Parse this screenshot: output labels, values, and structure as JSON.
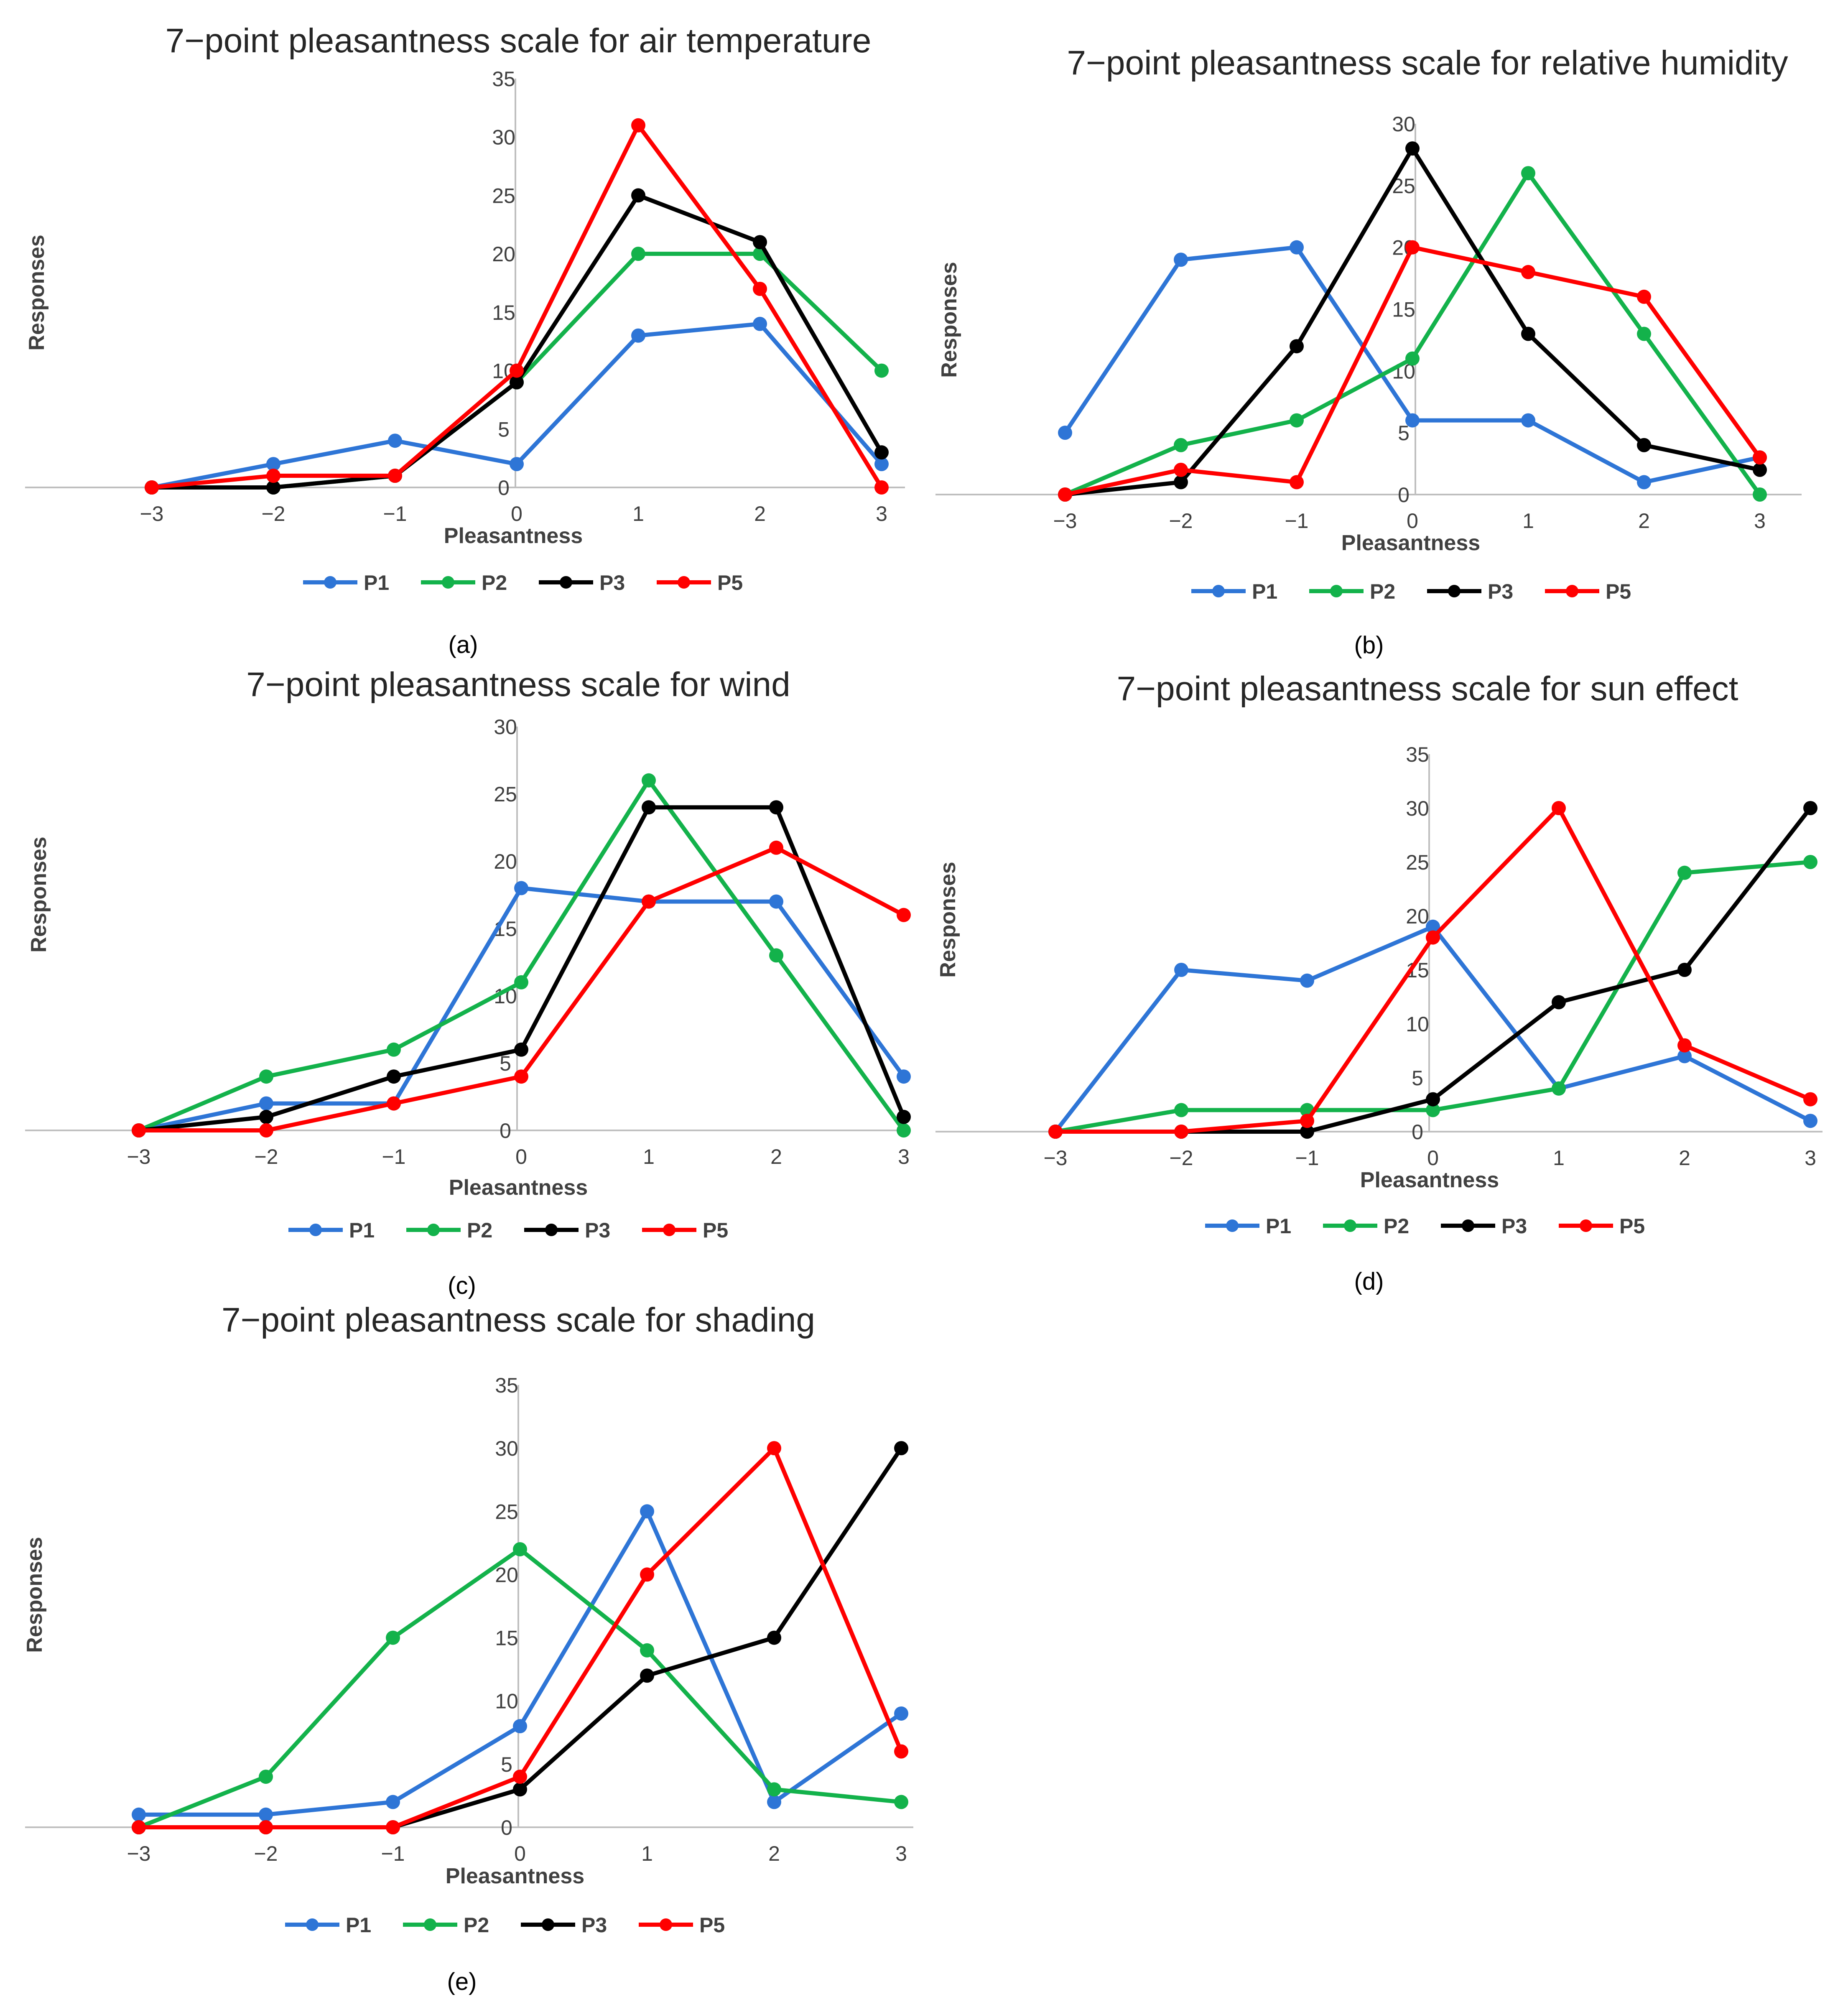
{
  "chart_data": [
    {
      "type": "line",
      "panel_label": "a",
      "title": "7−point pleasantness scale for air temperature",
      "xlabel": "Pleasantness",
      "ylabel": "Responses",
      "categories": [
        "−3",
        "−2",
        "−1",
        "0",
        "1",
        "2",
        "3"
      ],
      "x": [
        -3,
        -2,
        -1,
        0,
        1,
        2,
        3
      ],
      "ylim": [
        0,
        35
      ],
      "yticks": [
        0,
        5,
        10,
        15,
        20,
        25,
        30,
        35
      ],
      "ytick_labels": [
        "0",
        "5",
        "10",
        "15",
        "20",
        "25",
        "30",
        "35"
      ],
      "grid": false,
      "legend": "bottom",
      "series": [
        {
          "name": "P1",
          "color": "#2E75D6",
          "values": [
            0,
            2,
            4,
            2,
            13,
            14,
            2
          ]
        },
        {
          "name": "P2",
          "color": "#13B24B",
          "values": [
            0,
            0,
            1,
            9,
            20,
            20,
            10
          ]
        },
        {
          "name": "P3",
          "color": "#000000",
          "values": [
            0,
            0,
            1,
            9,
            25,
            21,
            3
          ]
        },
        {
          "name": "P5",
          "color": "#FF0000",
          "values": [
            0,
            1,
            1,
            10,
            31,
            17,
            0
          ]
        }
      ]
    },
    {
      "type": "line",
      "panel_label": "b",
      "title": "7−point pleasantness scale for relative humidity",
      "xlabel": "Pleasantness",
      "ylabel": "Responses",
      "categories": [
        "−3",
        "−2",
        "−1",
        "0",
        "1",
        "2",
        "3"
      ],
      "x": [
        -3,
        -2,
        -1,
        0,
        1,
        2,
        3
      ],
      "ylim": [
        0,
        30
      ],
      "yticks": [
        0,
        5,
        10,
        15,
        20,
        25,
        30
      ],
      "ytick_labels": [
        "0",
        "5",
        "10",
        "15",
        "20",
        "25",
        "30"
      ],
      "grid": false,
      "legend": "bottom",
      "series": [
        {
          "name": "P1",
          "color": "#2E75D6",
          "values": [
            5,
            19,
            20,
            6,
            6,
            1,
            3
          ]
        },
        {
          "name": "P2",
          "color": "#13B24B",
          "values": [
            0,
            4,
            6,
            11,
            26,
            13,
            0
          ]
        },
        {
          "name": "P3",
          "color": "#000000",
          "values": [
            0,
            1,
            12,
            28,
            13,
            4,
            2
          ]
        },
        {
          "name": "P5",
          "color": "#FF0000",
          "values": [
            0,
            2,
            1,
            20,
            18,
            16,
            3
          ]
        }
      ]
    },
    {
      "type": "line",
      "panel_label": "c",
      "title": "7−point pleasantness scale for wind",
      "xlabel": "Pleasantness",
      "ylabel": "Responses",
      "categories": [
        "−3",
        "−2",
        "−1",
        "0",
        "1",
        "2",
        "3"
      ],
      "x": [
        -3,
        -2,
        -1,
        0,
        1,
        2,
        3
      ],
      "ylim": [
        0,
        30
      ],
      "yticks": [
        0,
        5,
        10,
        15,
        20,
        25,
        30
      ],
      "ytick_labels": [
        "0",
        "5",
        "10",
        "15",
        "20",
        "25",
        "30"
      ],
      "grid": false,
      "legend": "bottom",
      "series": [
        {
          "name": "P1",
          "color": "#2E75D6",
          "values": [
            0,
            2,
            2,
            18,
            17,
            17,
            4
          ]
        },
        {
          "name": "P2",
          "color": "#13B24B",
          "values": [
            0,
            4,
            6,
            11,
            26,
            13,
            0
          ]
        },
        {
          "name": "P3",
          "color": "#000000",
          "values": [
            0,
            1,
            4,
            6,
            24,
            24,
            1
          ]
        },
        {
          "name": "P5",
          "color": "#FF0000",
          "values": [
            0,
            0,
            2,
            4,
            17,
            21,
            16
          ]
        }
      ]
    },
    {
      "type": "line",
      "panel_label": "d",
      "title": "7−point pleasantness scale for sun effect",
      "xlabel": "Pleasantness",
      "ylabel": "Responses",
      "categories": [
        "−3",
        "−2",
        "−1",
        "0",
        "1",
        "2",
        "3"
      ],
      "x": [
        -3,
        -2,
        -1,
        0,
        1,
        2,
        3
      ],
      "ylim": [
        0,
        35
      ],
      "yticks": [
        0,
        5,
        10,
        15,
        20,
        25,
        30,
        35
      ],
      "ytick_labels": [
        "0",
        "5",
        "10",
        "15",
        "20",
        "25",
        "30",
        "35"
      ],
      "grid": false,
      "legend": "bottom",
      "series": [
        {
          "name": "P1",
          "color": "#2E75D6",
          "values": [
            0,
            15,
            14,
            19,
            4,
            7,
            1
          ]
        },
        {
          "name": "P2",
          "color": "#13B24B",
          "values": [
            0,
            2,
            2,
            2,
            4,
            24,
            25
          ]
        },
        {
          "name": "P3",
          "color": "#000000",
          "values": [
            0,
            0,
            0,
            3,
            12,
            15,
            30
          ]
        },
        {
          "name": "P5",
          "color": "#FF0000",
          "values": [
            0,
            0,
            1,
            18,
            30,
            8,
            3
          ]
        }
      ]
    },
    {
      "type": "line",
      "panel_label": "e",
      "title": "7−point pleasantness scale for shading",
      "xlabel": "Pleasantness",
      "ylabel": "Responses",
      "categories": [
        "−3",
        "−2",
        "−1",
        "0",
        "1",
        "2",
        "3"
      ],
      "x": [
        -3,
        -2,
        -1,
        0,
        1,
        2,
        3
      ],
      "ylim": [
        0,
        35
      ],
      "yticks": [
        0,
        5,
        10,
        15,
        20,
        25,
        30,
        35
      ],
      "ytick_labels": [
        "0",
        "5",
        "10",
        "15",
        "20",
        "25",
        "30",
        "35"
      ],
      "grid": false,
      "legend": "bottom",
      "series": [
        {
          "name": "P1",
          "color": "#2E75D6",
          "values": [
            1,
            1,
            2,
            8,
            25,
            2,
            9
          ]
        },
        {
          "name": "P2",
          "color": "#13B24B",
          "values": [
            0,
            4,
            15,
            22,
            14,
            3,
            2
          ]
        },
        {
          "name": "P3",
          "color": "#000000",
          "values": [
            0,
            0,
            0,
            3,
            12,
            15,
            30
          ]
        },
        {
          "name": "P5",
          "color": "#FF0000",
          "values": [
            0,
            0,
            0,
            4,
            20,
            30,
            6
          ]
        }
      ]
    }
  ],
  "captions": [
    "(a)",
    "(b)",
    "(c)",
    "(d)",
    "(e)"
  ]
}
